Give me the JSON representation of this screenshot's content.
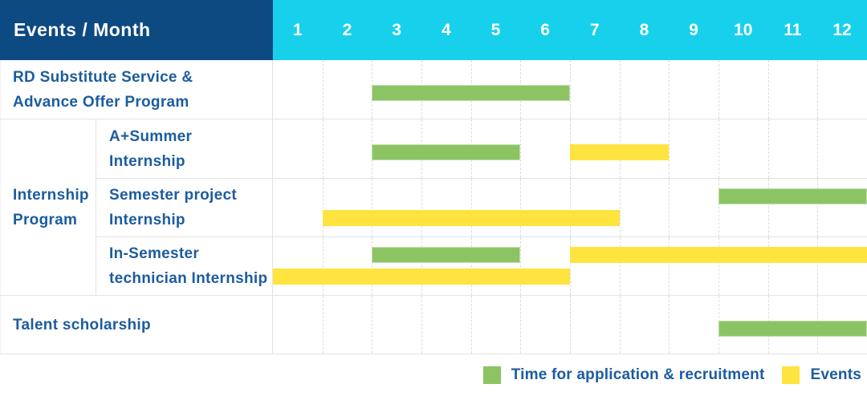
{
  "colors": {
    "header_bg": "#0d4a82",
    "months_bg": "#17d1ec",
    "bar_green": "#8cc464",
    "bar_yellow": "#ffe33e",
    "label_text": "#1c5c9f",
    "header_text": "#ffffff"
  },
  "table": {
    "corner_label": "Events / Month",
    "months": [
      "1",
      "2",
      "3",
      "4",
      "5",
      "6",
      "7",
      "8",
      "9",
      "10",
      "11",
      "12"
    ],
    "sections": [
      {
        "label_lines": [
          "RD Substitute Service &",
          "Advance Offer Program"
        ],
        "bars": [
          {
            "color": "green",
            "start": 3,
            "end": 6,
            "lane": "center"
          }
        ]
      },
      {
        "group_label_lines": [
          "Internship",
          "Program"
        ],
        "rows": [
          {
            "label_lines": [
              "A+Summer",
              "Internship"
            ],
            "bars": [
              {
                "color": "green",
                "start": 3,
                "end": 5,
                "lane": "center"
              },
              {
                "color": "yellow",
                "start": 7,
                "end": 8,
                "lane": "center"
              }
            ]
          },
          {
            "label_lines": [
              "Semester project",
              "Internship"
            ],
            "bars": [
              {
                "color": "green",
                "start": 10,
                "end": 12,
                "lane": "top"
              },
              {
                "color": "yellow",
                "start": 2,
                "end": 7,
                "lane": "bottom"
              }
            ]
          },
          {
            "label_lines": [
              "In-Semester",
              "technician Internship"
            ],
            "bars": [
              {
                "color": "green",
                "start": 3,
                "end": 5,
                "lane": "top"
              },
              {
                "color": "yellow",
                "start": 7,
                "end": 12,
                "lane": "top"
              },
              {
                "color": "yellow",
                "start": 1,
                "end": 6,
                "lane": "bottom"
              }
            ]
          }
        ]
      },
      {
        "label_lines": [
          "Talent scholarship"
        ],
        "bars": [
          {
            "color": "green",
            "start": 10,
            "end": 12,
            "lane": "center"
          }
        ]
      }
    ]
  },
  "legend": {
    "items": [
      {
        "label": "Time for application & recruitment",
        "color": "green"
      },
      {
        "label": "Events",
        "color": "yellow"
      }
    ]
  },
  "chart_data": {
    "type": "gantt",
    "x_axis": {
      "label": "Month",
      "ticks": [
        1,
        2,
        3,
        4,
        5,
        6,
        7,
        8,
        9,
        10,
        11,
        12
      ],
      "range": [
        1,
        12
      ]
    },
    "legend_entries": [
      {
        "name": "Time for application & recruitment",
        "color": "#8cc464"
      },
      {
        "name": "Events",
        "color": "#ffe33e"
      }
    ],
    "legend_position": "bottom-right",
    "tasks": [
      {
        "group": null,
        "name": "RD Substitute Service & Advance Offer Program",
        "application_recruitment_months": [
          [
            3,
            6
          ]
        ],
        "event_months": []
      },
      {
        "group": "Internship Program",
        "name": "A+Summer Internship",
        "application_recruitment_months": [
          [
            3,
            5
          ]
        ],
        "event_months": [
          [
            7,
            8
          ]
        ]
      },
      {
        "group": "Internship Program",
        "name": "Semester project Internship",
        "application_recruitment_months": [
          [
            10,
            12
          ]
        ],
        "event_months": [
          [
            2,
            7
          ]
        ]
      },
      {
        "group": "Internship Program",
        "name": "In-Semester technician Internship",
        "application_recruitment_months": [
          [
            3,
            5
          ]
        ],
        "event_months": [
          [
            1,
            6
          ],
          [
            7,
            12
          ]
        ]
      },
      {
        "group": null,
        "name": "Talent scholarship",
        "application_recruitment_months": [
          [
            10,
            12
          ]
        ],
        "event_months": []
      }
    ]
  }
}
